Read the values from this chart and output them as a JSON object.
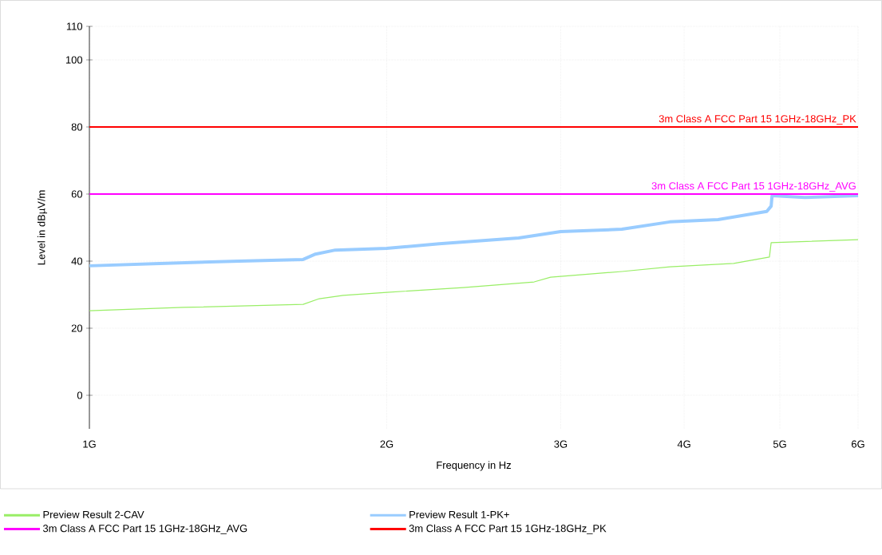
{
  "chart_data": {
    "type": "line",
    "xlabel": "Frequency in Hz",
    "ylabel": "Level in dBµV/m",
    "log": "x",
    "grid": true,
    "legend": "bottom",
    "line_style": "solid",
    "marker": "none",
    "xlim": [
      1,
      6
    ],
    "ylim": [
      -10,
      110
    ],
    "xticks": [
      {
        "value": 1,
        "label": "1G"
      },
      {
        "value": 2,
        "label": "2G"
      },
      {
        "value": 3,
        "label": "3G"
      },
      {
        "value": 4,
        "label": "4G"
      },
      {
        "value": 5,
        "label": "5G"
      },
      {
        "value": 6,
        "label": "6G"
      }
    ],
    "yticks": [
      0,
      20,
      40,
      60,
      80,
      100,
      110
    ],
    "series": [
      {
        "name": "Preview Result 2-CAV",
        "color": "#99ee66",
        "x": [
          1,
          1.245,
          1.646,
          1.709,
          1.807,
          2,
          2.39,
          2.82,
          2.93,
          3.46,
          3.87,
          4.49,
          4.88,
          4.9,
          6
        ],
        "values": [
          25.2,
          26.2,
          27.1,
          28.8,
          29.8,
          30.7,
          32.1,
          33.8,
          35.2,
          36.9,
          38.3,
          39.3,
          41.2,
          45.5,
          46.4
        ]
      },
      {
        "name": "Preview Result 1-PK+",
        "color": "#99ccff",
        "x": [
          1,
          1.178,
          1.419,
          1.646,
          1.694,
          1.774,
          2,
          2.26,
          2.72,
          3,
          3.46,
          3.87,
          4.33,
          4.85,
          4.9,
          4.91,
          5.3,
          6
        ],
        "values": [
          38.6,
          39.3,
          40,
          40.5,
          42.1,
          43.3,
          43.8,
          45.2,
          46.9,
          48.8,
          49.5,
          51.7,
          52.4,
          54.8,
          56.4,
          59.5,
          59,
          59.5
        ]
      },
      {
        "name": "3m Class A FCC Part 15 1GHz-18GHz_AVG",
        "color": "#ff00ff",
        "x": [
          1,
          6
        ],
        "values": [
          60,
          60
        ]
      },
      {
        "name": "3m Class A FCC Part 15 1GHz-18GHz_PK",
        "color": "#ff0000",
        "x": [
          1,
          6
        ],
        "values": [
          80,
          80
        ]
      }
    ]
  }
}
